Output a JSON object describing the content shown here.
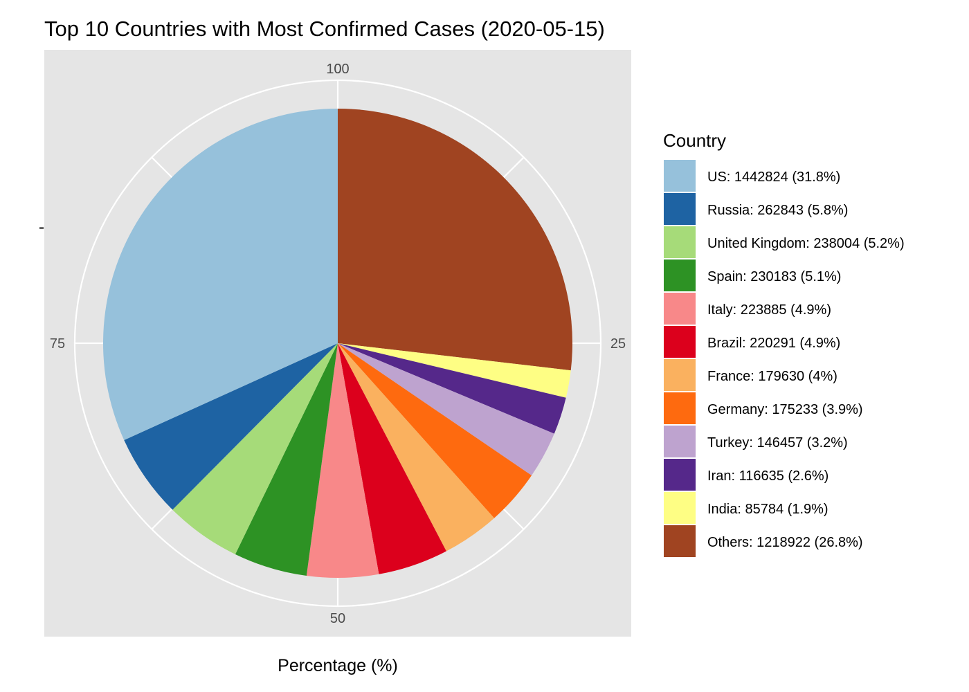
{
  "chart_data": {
    "type": "pie",
    "title": "Top 10 Countries with Most Confirmed Cases (2020-05-15)",
    "xlabel": "Percentage (%)",
    "ylabel": "-",
    "theta_ticks": [
      "0",
      "25",
      "50",
      "75",
      "100"
    ],
    "legend_title": "Country",
    "legend_position": "right",
    "slices": [
      {
        "label": "US",
        "value": 1442824,
        "percent_label": "31.8%",
        "legend": "US: 1442824 (31.8%)",
        "color": "#96C1DB"
      },
      {
        "label": "Russia",
        "value": 262843,
        "percent_label": "5.8%",
        "legend": "Russia: 262843 (5.8%)",
        "color": "#1E63A3"
      },
      {
        "label": "United Kingdom",
        "value": 238004,
        "percent_label": "5.2%",
        "legend": "United Kingdom: 238004 (5.2%)",
        "color": "#A6DB79"
      },
      {
        "label": "Spain",
        "value": 230183,
        "percent_label": "5.1%",
        "legend": "Spain: 230183 (5.1%)",
        "color": "#2D9224"
      },
      {
        "label": "Italy",
        "value": 223885,
        "percent_label": "4.9%",
        "legend": "Italy: 223885 (4.9%)",
        "color": "#F88889"
      },
      {
        "label": "Brazil",
        "value": 220291,
        "percent_label": "4.9%",
        "legend": "Brazil: 220291 (4.9%)",
        "color": "#DC001C"
      },
      {
        "label": "France",
        "value": 179630,
        "percent_label": "4%",
        "legend": "France: 179630 (4%)",
        "color": "#FAB15F"
      },
      {
        "label": "Germany",
        "value": 175233,
        "percent_label": "3.9%",
        "legend": "Germany: 175233 (3.9%)",
        "color": "#FE6A0F"
      },
      {
        "label": "Turkey",
        "value": 146457,
        "percent_label": "3.2%",
        "legend": "Turkey: 146457 (3.2%)",
        "color": "#BEA3CF"
      },
      {
        "label": "Iran",
        "value": 116635,
        "percent_label": "2.6%",
        "legend": "Iran: 116635 (2.6%)",
        "color": "#55288A"
      },
      {
        "label": "India",
        "value": 85784,
        "percent_label": "1.9%",
        "legend": "India: 85784 (1.9%)",
        "color": "#FEFE84"
      },
      {
        "label": "Others",
        "value": 1218922,
        "percent_label": "26.8%",
        "legend": "Others: 1218922 (26.8%)",
        "color": "#A04421"
      }
    ]
  }
}
